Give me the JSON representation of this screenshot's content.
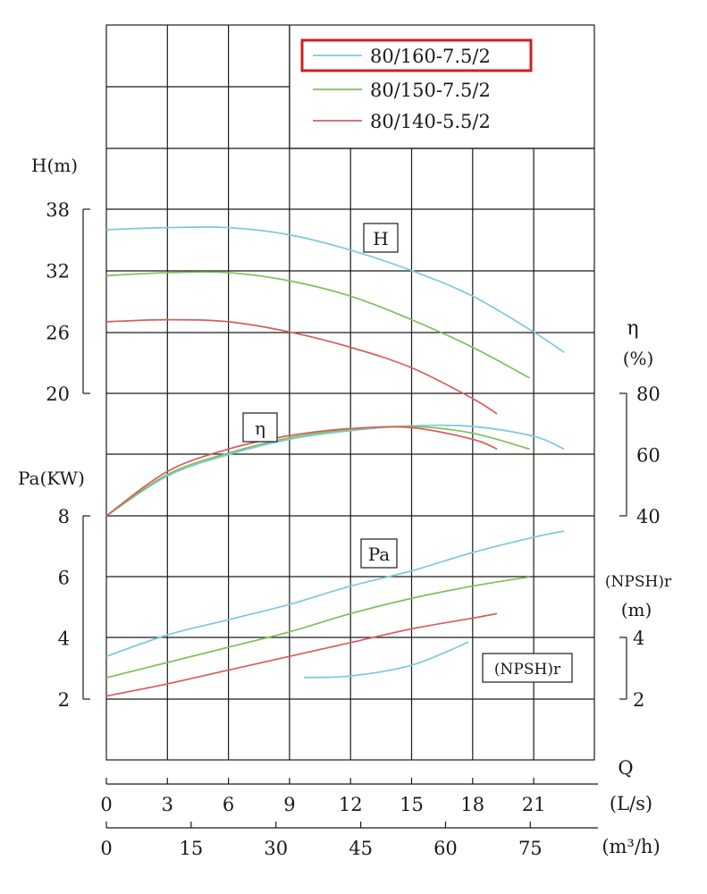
{
  "chart_data": {
    "type": "line",
    "x_label": "Q",
    "x_units_ls": "(L/s)",
    "x_units_m3h": "(m³/h)",
    "x_ticks_ls": [
      "0",
      "3",
      "6",
      "9",
      "12",
      "15",
      "18",
      "21"
    ],
    "x_ticks_m3h": [
      "0",
      "15",
      "30",
      "45",
      "60",
      "75"
    ],
    "xlim_ls": [
      0,
      24
    ],
    "legend": {
      "placement": "top-right",
      "entries": [
        {
          "name": "80/160-7.5/2",
          "color": "#7ec8dc",
          "highlighted": true
        },
        {
          "name": "80/150-7.5/2",
          "color": "#7fbf5a"
        },
        {
          "name": "80/140-5.5/2",
          "color": "#d95c5c"
        }
      ],
      "highlight_color": "#d21e1e"
    },
    "axes": {
      "H": {
        "label": "H(m)",
        "ticks": [
          "38",
          "32",
          "26",
          "20"
        ],
        "range": [
          20,
          38
        ]
      },
      "eta": {
        "label": "η",
        "unit": "(%)",
        "ticks": [
          "80",
          "60",
          "40"
        ],
        "range": [
          40,
          80
        ]
      },
      "Pa": {
        "label": "Pa(KW)",
        "ticks": [
          "8",
          "6",
          "4",
          "2"
        ],
        "range": [
          2,
          8
        ]
      },
      "NPSH": {
        "label": "(NPSH)r",
        "unit": "(m)",
        "ticks": [
          "4",
          "2"
        ],
        "range": [
          2,
          4
        ]
      }
    },
    "curve_tags": {
      "H": "H",
      "eta": "η",
      "Pa": "Pa",
      "NPSH": "(NPSH)r"
    },
    "series": [
      {
        "name": "80/160-7.5/2",
        "quantity": "H",
        "x": [
          0,
          3,
          6,
          9,
          12,
          15,
          18,
          21,
          22.5
        ],
        "y": [
          36,
          36.2,
          36.2,
          35.5,
          34,
          32,
          29.5,
          26,
          24
        ]
      },
      {
        "name": "80/150-7.5/2",
        "quantity": "H",
        "x": [
          0,
          3,
          6,
          9,
          12,
          15,
          18,
          20.8
        ],
        "y": [
          31.5,
          31.8,
          31.8,
          31,
          29.5,
          27.2,
          24.5,
          21.5
        ]
      },
      {
        "name": "80/140-5.5/2",
        "quantity": "H",
        "x": [
          0,
          3,
          6,
          9,
          12,
          15,
          18,
          19.2
        ],
        "y": [
          27,
          27.2,
          27,
          26,
          24.5,
          22.5,
          19.5,
          18
        ]
      },
      {
        "name": "80/160-7.5/2",
        "quantity": "eta",
        "x": [
          0,
          3,
          6,
          9,
          12,
          15,
          18,
          21,
          22.5
        ],
        "y": [
          40,
          53,
          60,
          65,
          67.8,
          69.4,
          69.2,
          66,
          61.8
        ]
      },
      {
        "name": "80/150-7.5/2",
        "quantity": "eta",
        "x": [
          0,
          3,
          6,
          9,
          12,
          15,
          18,
          20.8
        ],
        "y": [
          40,
          53.5,
          60.5,
          65.5,
          68.2,
          69.2,
          67,
          61.8
        ]
      },
      {
        "name": "80/140-5.5/2",
        "quantity": "eta",
        "x": [
          0,
          3,
          6,
          9,
          12,
          15,
          18,
          19.2
        ],
        "y": [
          40,
          54.5,
          61.8,
          66.2,
          68.5,
          68.8,
          65,
          61.8
        ]
      },
      {
        "name": "80/160-7.5/2",
        "quantity": "Pa",
        "x": [
          0,
          3,
          6,
          9,
          12,
          15,
          18,
          21,
          22.5
        ],
        "y": [
          3.4,
          4.1,
          4.6,
          5.1,
          5.7,
          6.2,
          6.8,
          7.3,
          7.5
        ]
      },
      {
        "name": "80/150-7.5/2",
        "quantity": "Pa",
        "x": [
          0,
          3,
          6,
          9,
          12,
          15,
          18,
          20.8
        ],
        "y": [
          2.7,
          3.2,
          3.7,
          4.2,
          4.8,
          5.3,
          5.7,
          6.0
        ]
      },
      {
        "name": "80/140-5.5/2",
        "quantity": "Pa",
        "x": [
          0,
          3,
          6,
          9,
          12,
          15,
          18,
          19.2
        ],
        "y": [
          2.1,
          2.5,
          2.95,
          3.4,
          3.85,
          4.3,
          4.65,
          4.8
        ]
      },
      {
        "name": "80/160-7.5/2",
        "quantity": "NPSH",
        "x": [
          9.7,
          12,
          15,
          17.8
        ],
        "y": [
          2.7,
          2.75,
          3.1,
          3.85
        ]
      }
    ]
  }
}
